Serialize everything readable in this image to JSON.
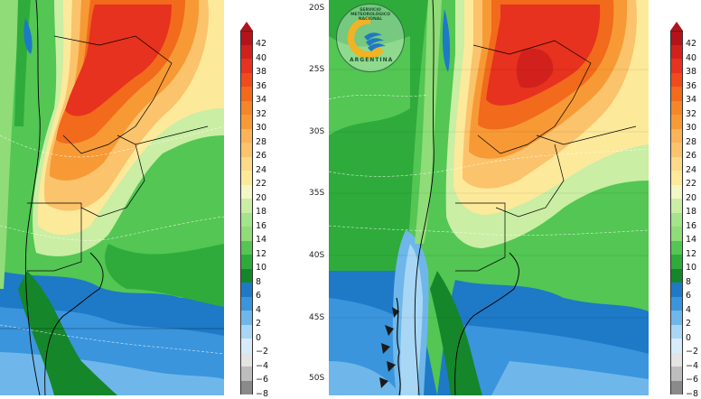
{
  "colors": {
    "deep_red": "#b5121b",
    "red": "#e6321e",
    "orange_red": "#f26a1b",
    "orange": "#f79a35",
    "light_orange": "#fbc36b",
    "yellow": "#fde99a",
    "pale_yellow": "#f2f7c6",
    "pale_green": "#c9eea4",
    "light_green": "#8fdc78",
    "green": "#53c654",
    "mid_green": "#2fab3c",
    "dark_green": "#16862a",
    "teal_blue": "#1e79c7",
    "blue": "#3a95dd",
    "light_blue": "#6fb7ea",
    "pale_blue": "#a8d6f5",
    "very_pale_blue": "#d6ecfb",
    "gray": "#bdbdbd",
    "dark_gray": "#8a8a8a"
  },
  "left_map": {
    "colorbar": {
      "ticks": [
        "42",
        "40",
        "38",
        "36",
        "34",
        "32",
        "30",
        "28",
        "26",
        "24",
        "22",
        "20",
        "18",
        "16",
        "14",
        "12",
        "10",
        "8",
        "6",
        "4",
        "2",
        "0",
        "−2",
        "−4",
        "−6",
        "−8"
      ],
      "colors": [
        "#b5121b",
        "#d2211c",
        "#e6321e",
        "#f04b1c",
        "#f26a1b",
        "#f7852a",
        "#f79a35",
        "#fab358",
        "#fbc36b",
        "#fdd98a",
        "#fde99a",
        "#f2f7c6",
        "#c9eea4",
        "#a3e48c",
        "#8fdc78",
        "#53c654",
        "#2fab3c",
        "#16862a",
        "#1e79c7",
        "#3a95dd",
        "#6fb7ea",
        "#a8d6f5",
        "#d6ecfb",
        "#e4e4e4",
        "#bdbdbd",
        "#8a8a8a"
      ]
    }
  },
  "right_map": {
    "latitude_labels": [
      "20S",
      "25S",
      "30S",
      "35S",
      "40S",
      "45S",
      "50S"
    ],
    "logo": {
      "text_top": "SERVICIO METEOROLÓGICO NACIONAL",
      "text_bottom": "ARGENTINA",
      "icon": "smn-logo-icon"
    },
    "colorbar": {
      "ticks": [
        "42",
        "40",
        "38",
        "36",
        "34",
        "32",
        "30",
        "28",
        "26",
        "24",
        "22",
        "20",
        "18",
        "16",
        "14",
        "12",
        "10",
        "8",
        "6",
        "4",
        "2",
        "0",
        "−2",
        "−4",
        "−6",
        "−8"
      ]
    }
  }
}
